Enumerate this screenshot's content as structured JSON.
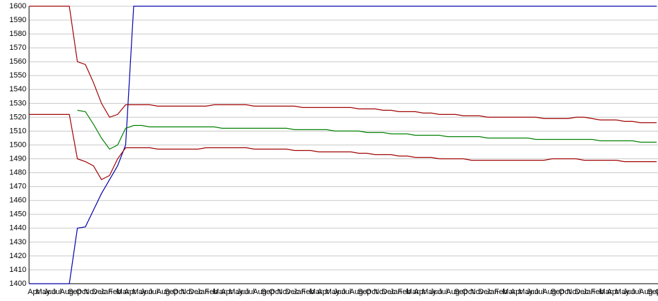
{
  "chart_data": {
    "type": "line",
    "categories": [
      "Apr",
      "May",
      "Jun",
      "Jul",
      "Aug",
      "Sep",
      "Oct",
      "Nov",
      "Dec",
      "Jan",
      "Feb",
      "Mar",
      "Apr",
      "May",
      "Jun",
      "Jul",
      "Aug",
      "Sep",
      "Oct",
      "Nov",
      "Dec",
      "Jan",
      "Feb",
      "Mar",
      "Apr",
      "May",
      "Jun",
      "Jul",
      "Aug",
      "Sep",
      "Oct",
      "Nov",
      "Dec",
      "Jan",
      "Feb",
      "Mar",
      "Apr",
      "May",
      "Jun",
      "Jul",
      "Aug",
      "Sep",
      "Oct",
      "Nov",
      "Dec",
      "Jan",
      "Feb",
      "Mar",
      "Apr",
      "May",
      "Jun",
      "Jul",
      "Aug",
      "Sep",
      "Oct",
      "Nov",
      "Dec",
      "Jan",
      "Feb",
      "Mar",
      "Apr",
      "May",
      "Jun",
      "Jul",
      "Aug",
      "Sep",
      "Oct",
      "Nov",
      "Dec",
      "Jan",
      "Feb",
      "Mar",
      "Apr",
      "May",
      "Jun",
      "Jul",
      "Aug",
      "Sep",
      "Oct"
    ],
    "series": [
      {
        "color": "#0000aa",
        "values": [
          1400,
          1400,
          1400,
          1400,
          1400,
          1400,
          1440,
          1441,
          1453,
          1465,
          1475,
          1485,
          1500,
          1600,
          1600,
          1600,
          1600,
          1600,
          1600,
          1600,
          1600,
          1600,
          1600,
          1600,
          1600,
          1600,
          1600,
          1600,
          1600,
          1600,
          1600,
          1600,
          1600,
          1600,
          1600,
          1600,
          1600,
          1600,
          1600,
          1600,
          1600,
          1600,
          1600,
          1600,
          1600,
          1600,
          1600,
          1600,
          1600,
          1600,
          1600,
          1600,
          1600,
          1600,
          1600,
          1600,
          1600,
          1600,
          1600,
          1600,
          1600,
          1600,
          1600,
          1600,
          1600,
          1600,
          1600,
          1600,
          1600,
          1600,
          1600,
          1600,
          1600,
          1600,
          1600,
          1600,
          1600,
          1600,
          1600
        ]
      },
      {
        "color": "#008000",
        "values": [
          null,
          null,
          null,
          null,
          null,
          null,
          1525,
          1524,
          1515,
          1505,
          1497,
          1500,
          1512,
          1514,
          1514,
          1513,
          1513,
          1513,
          1513,
          1513,
          1513,
          1513,
          1513,
          1513,
          1512,
          1512,
          1512,
          1512,
          1512,
          1512,
          1512,
          1512,
          1512,
          1511,
          1511,
          1511,
          1511,
          1511,
          1510,
          1510,
          1510,
          1510,
          1509,
          1509,
          1509,
          1508,
          1508,
          1508,
          1507,
          1507,
          1507,
          1507,
          1506,
          1506,
          1506,
          1506,
          1506,
          1505,
          1505,
          1505,
          1505,
          1505,
          1505,
          1504,
          1504,
          1504,
          1504,
          1504,
          1504,
          1504,
          1504,
          1503,
          1503,
          1503,
          1503,
          1503,
          1502,
          1502,
          1502
        ]
      },
      {
        "color": "#a00000",
        "values": [
          1600,
          1600,
          1600,
          1600,
          1600,
          1600,
          1560,
          1558,
          1545,
          1530,
          1520,
          1522,
          1529,
          1529,
          1529,
          1529,
          1528,
          1528,
          1528,
          1528,
          1528,
          1528,
          1528,
          1529,
          1529,
          1529,
          1529,
          1529,
          1528,
          1528,
          1528,
          1528,
          1528,
          1528,
          1527,
          1527,
          1527,
          1527,
          1527,
          1527,
          1527,
          1526,
          1526,
          1526,
          1525,
          1525,
          1524,
          1524,
          1524,
          1523,
          1523,
          1522,
          1522,
          1522,
          1521,
          1521,
          1521,
          1520,
          1520,
          1520,
          1520,
          1520,
          1520,
          1520,
          1519,
          1519,
          1519,
          1519,
          1520,
          1520,
          1519,
          1518,
          1518,
          1518,
          1517,
          1517,
          1516,
          1516,
          1516
        ]
      },
      {
        "color": "#a00000",
        "values": [
          1522,
          1522,
          1522,
          1522,
          1522,
          1522,
          1490,
          1488,
          1485,
          1475,
          1478,
          1490,
          1498,
          1498,
          1498,
          1498,
          1497,
          1497,
          1497,
          1497,
          1497,
          1497,
          1498,
          1498,
          1498,
          1498,
          1498,
          1498,
          1497,
          1497,
          1497,
          1497,
          1497,
          1496,
          1496,
          1496,
          1495,
          1495,
          1495,
          1495,
          1495,
          1494,
          1494,
          1493,
          1493,
          1493,
          1492,
          1492,
          1491,
          1491,
          1491,
          1490,
          1490,
          1490,
          1490,
          1489,
          1489,
          1489,
          1489,
          1489,
          1489,
          1489,
          1489,
          1489,
          1489,
          1490,
          1490,
          1490,
          1490,
          1489,
          1489,
          1489,
          1489,
          1489,
          1488,
          1488,
          1488,
          1488,
          1488
        ]
      }
    ],
    "ylim": [
      1400,
      1600
    ],
    "yticks": [
      1400,
      1410,
      1420,
      1430,
      1440,
      1450,
      1460,
      1470,
      1480,
      1490,
      1500,
      1510,
      1520,
      1530,
      1540,
      1550,
      1560,
      1570,
      1580,
      1590,
      1600
    ],
    "grid": true
  }
}
